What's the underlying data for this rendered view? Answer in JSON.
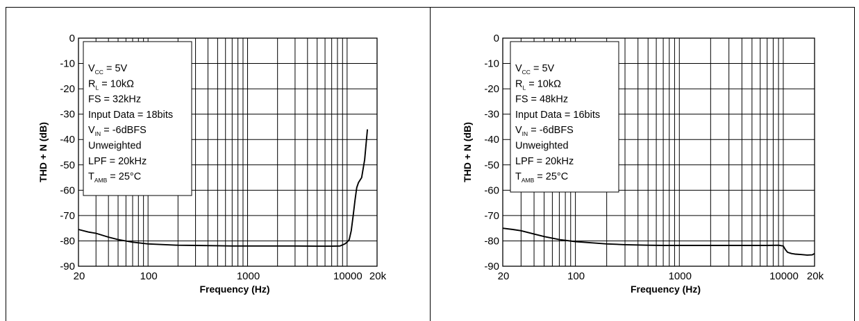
{
  "chart_data": [
    {
      "type": "line",
      "title": "",
      "xlabel": "Frequency (Hz)",
      "ylabel": "THD + N (dB)",
      "x_scale": "log",
      "xlim": [
        20,
        20000
      ],
      "ylim": [
        -90,
        0
      ],
      "grid": true,
      "x_tick_labels": [
        "20",
        "100",
        "1000",
        "10000",
        "20k"
      ],
      "y_tick_labels": [
        "0",
        "-10",
        "-20",
        "-30",
        "-40",
        "-50",
        "-60",
        "-70",
        "-80",
        "-90"
      ],
      "legend_box": {
        "position": "top-left",
        "lines": [
          {
            "main": "V",
            "sub": "CC",
            "rest": " = 5V"
          },
          {
            "main": "R",
            "sub": "L",
            "rest": " = 10kΩ"
          },
          {
            "main": "FS = 32kHz",
            "sub": "",
            "rest": ""
          },
          {
            "main": "Input Data = 18bits",
            "sub": "",
            "rest": ""
          },
          {
            "main": "V",
            "sub": "IN",
            "rest": " = -6dBFS"
          },
          {
            "main": "Unweighted",
            "sub": "",
            "rest": ""
          },
          {
            "main": "LPF = 20kHz",
            "sub": "",
            "rest": ""
          },
          {
            "main": "T",
            "sub": "AMB",
            "rest": " = 25°C"
          }
        ]
      },
      "series": [
        {
          "x": [
            20,
            25,
            30,
            40,
            50,
            70,
            100,
            150,
            200,
            300,
            500,
            700,
            1000,
            2000,
            3000,
            5000,
            7000,
            8500,
            9500,
            10000,
            10500,
            11000,
            11500,
            12000,
            12500,
            13000,
            14000,
            15000,
            16000
          ],
          "y": [
            -75.5,
            -76.5,
            -77,
            -78.5,
            -79.5,
            -80.5,
            -81.2,
            -81.5,
            -81.7,
            -81.8,
            -81.9,
            -82,
            -82,
            -82,
            -82,
            -82.1,
            -82.1,
            -82,
            -81.2,
            -80.5,
            -79.5,
            -76,
            -70,
            -64,
            -59,
            -57,
            -55,
            -48,
            -36
          ]
        }
      ]
    },
    {
      "type": "line",
      "title": "",
      "xlabel": "Frequency (Hz)",
      "ylabel": "THD + N (dB)",
      "x_scale": "log",
      "xlim": [
        20,
        20000
      ],
      "ylim": [
        -90,
        0
      ],
      "grid": true,
      "x_tick_labels": [
        "20",
        "100",
        "1000",
        "10000",
        "20k"
      ],
      "y_tick_labels": [
        "0",
        "-10",
        "-20",
        "-30",
        "-40",
        "-50",
        "-60",
        "-70",
        "-80",
        "-90"
      ],
      "legend_box": {
        "position": "top-left",
        "lines": [
          {
            "main": "V",
            "sub": "CC",
            "rest": " = 5V"
          },
          {
            "main": "R",
            "sub": "L",
            "rest": " = 10kΩ"
          },
          {
            "main": "FS = 48kHz",
            "sub": "",
            "rest": ""
          },
          {
            "main": "Input Data = 16bits",
            "sub": "",
            "rest": ""
          },
          {
            "main": "V",
            "sub": "IN",
            "rest": " = -6dBFS"
          },
          {
            "main": "Unweighted",
            "sub": "",
            "rest": ""
          },
          {
            "main": "LPF = 20kHz",
            "sub": "",
            "rest": ""
          },
          {
            "main": "T",
            "sub": "AMB",
            "rest": " = 25°C"
          }
        ]
      },
      "series": [
        {
          "x": [
            20,
            25,
            30,
            40,
            50,
            70,
            100,
            150,
            200,
            300,
            500,
            700,
            1000,
            2000,
            3000,
            5000,
            7000,
            9000,
            10000,
            10500,
            11000,
            12000,
            13000,
            15000,
            17000,
            19000,
            20000
          ],
          "y": [
            -75,
            -75.5,
            -76,
            -77.3,
            -78.3,
            -79.5,
            -80.3,
            -80.8,
            -81.2,
            -81.5,
            -81.7,
            -81.8,
            -81.8,
            -81.8,
            -81.8,
            -81.8,
            -81.8,
            -81.7,
            -82,
            -83.5,
            -84.5,
            -85,
            -85.2,
            -85.4,
            -85.6,
            -85.5,
            -85
          ]
        }
      ]
    }
  ]
}
